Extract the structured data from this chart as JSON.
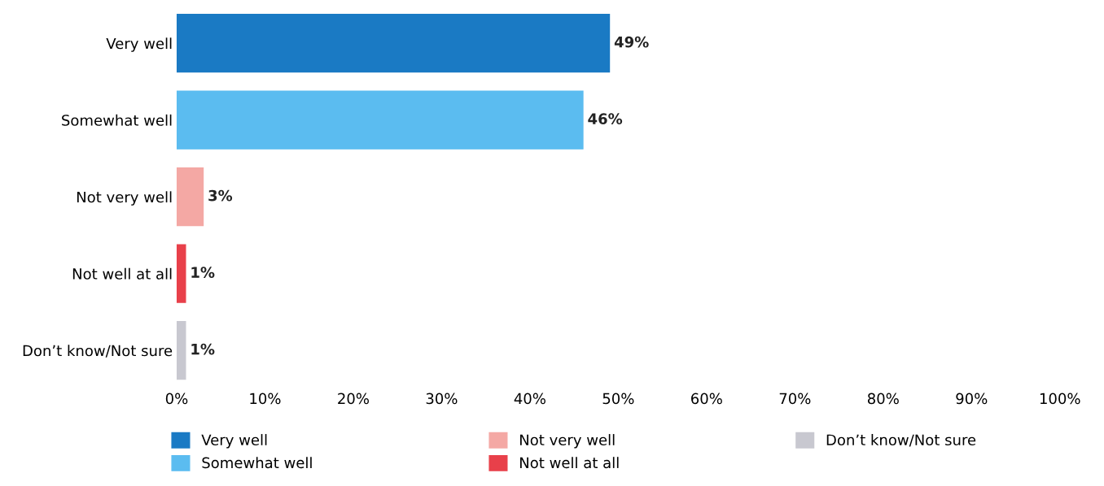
{
  "chart_data": {
    "type": "bar",
    "orientation": "horizontal",
    "categories": [
      "Very well",
      "Somewhat well",
      "Not very well",
      "Not well at all",
      "Don’t know/Not sure"
    ],
    "series": [
      {
        "name": "Very well",
        "color": "#1a7ac4",
        "values": [
          49,
          null,
          null,
          null,
          null
        ],
        "value_labels": [
          "49%",
          null,
          null,
          null,
          null
        ]
      },
      {
        "name": "Somewhat well",
        "color": "#5bbcf0",
        "values": [
          null,
          46,
          null,
          null,
          null
        ],
        "value_labels": [
          null,
          "46%",
          null,
          null,
          null
        ]
      },
      {
        "name": "Not very well",
        "color": "#f4a8a4",
        "values": [
          null,
          null,
          3,
          null,
          null
        ],
        "value_labels": [
          null,
          null,
          "3%",
          null,
          null
        ]
      },
      {
        "name": "Not well at all",
        "color": "#e8404a",
        "values": [
          null,
          null,
          null,
          1,
          null
        ],
        "value_labels": [
          null,
          null,
          null,
          "1%",
          null
        ]
      },
      {
        "name": "Don’t know/Not sure",
        "color": "#c8c8d0",
        "values": [
          null,
          null,
          null,
          null,
          1
        ],
        "value_labels": [
          null,
          null,
          null,
          null,
          "1%"
        ]
      }
    ],
    "xlim": [
      0,
      100
    ],
    "xticks": [
      {
        "value": 0,
        "label": "0%"
      },
      {
        "value": 10,
        "label": "10%"
      },
      {
        "value": 20,
        "label": "20%"
      },
      {
        "value": 30,
        "label": "30%"
      },
      {
        "value": 40,
        "label": "40%"
      },
      {
        "value": 50,
        "label": "50%"
      },
      {
        "value": 60,
        "label": "60%"
      },
      {
        "value": 70,
        "label": "70%"
      },
      {
        "value": 80,
        "label": "80%"
      },
      {
        "value": 90,
        "label": "90%"
      },
      {
        "value": 100,
        "label": "100%"
      }
    ],
    "grid": false,
    "legend": "bottom"
  }
}
